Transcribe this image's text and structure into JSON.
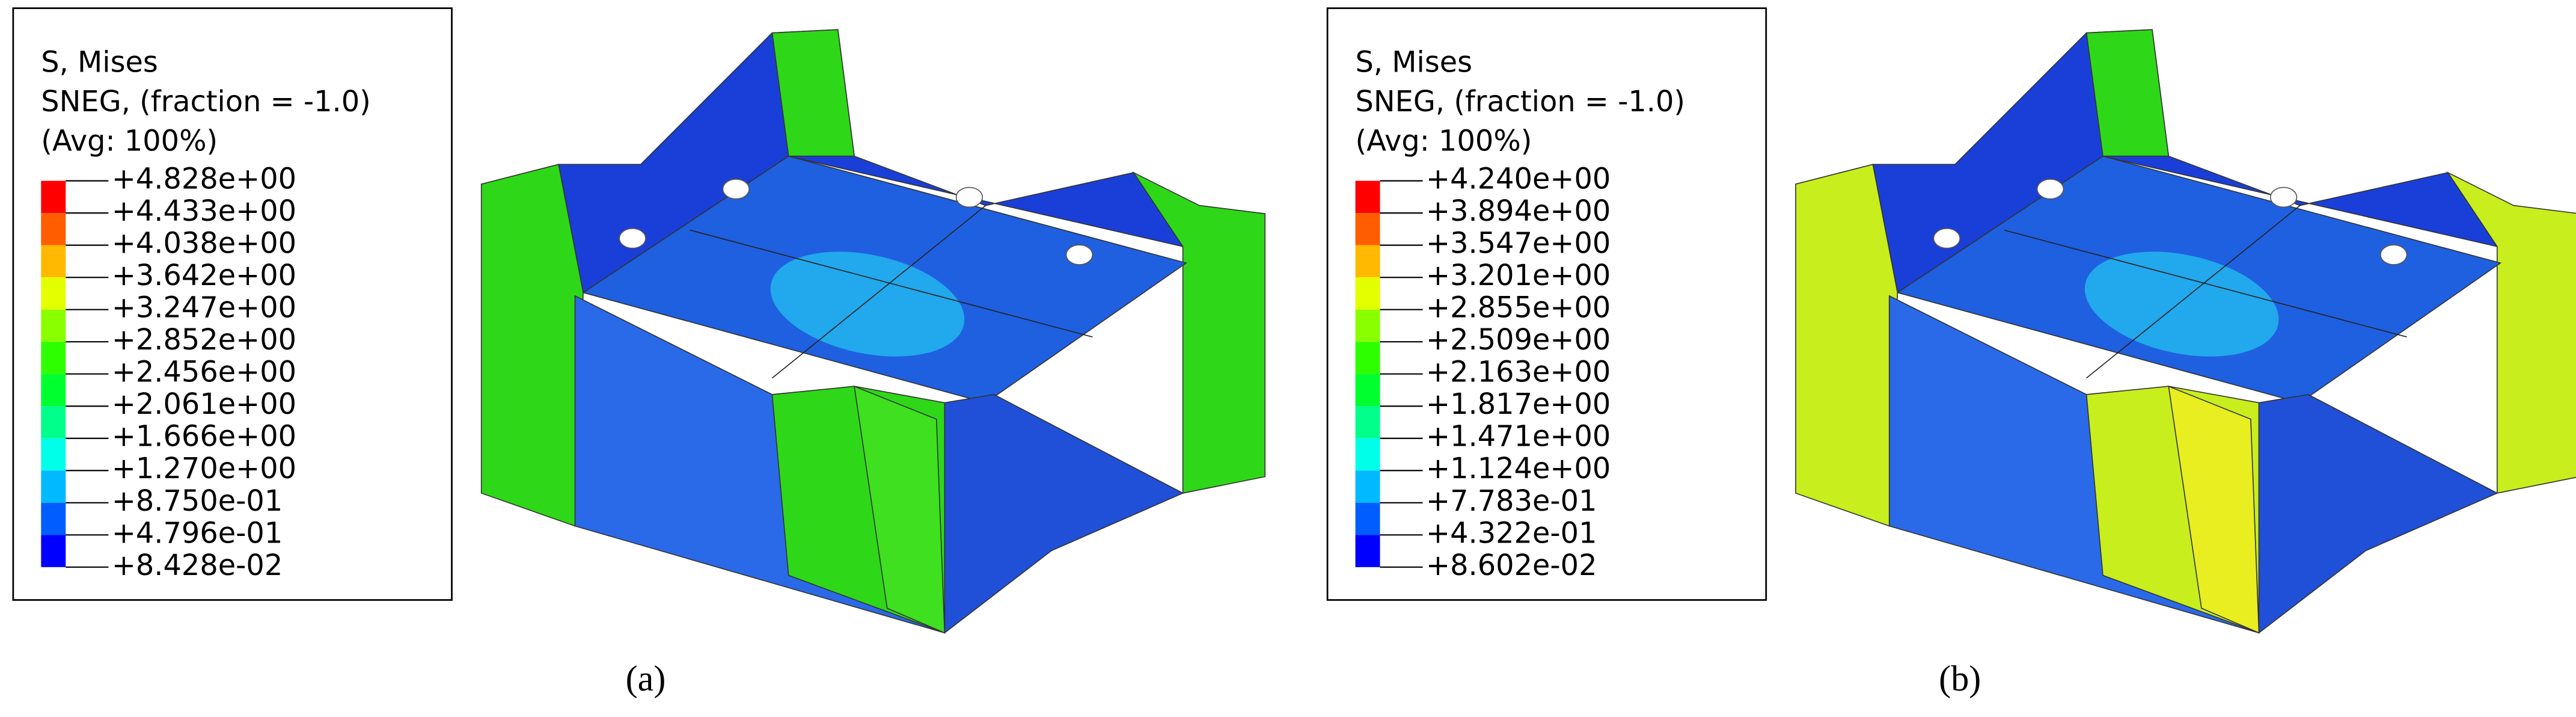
{
  "panels": [
    {
      "legend": {
        "lines": [
          "S, Mises",
          "SNEG, (fraction = -1.0)",
          "(Avg: 100%)"
        ],
        "levels": [
          "+4.828e+00",
          "+4.433e+00",
          "+4.038e+00",
          "+3.642e+00",
          "+3.247e+00",
          "+2.852e+00",
          "+2.456e+00",
          "+2.061e+00",
          "+1.666e+00",
          "+1.270e+00",
          "+8.750e-01",
          "+4.796e-01",
          "+8.428e-02"
        ]
      },
      "caption": "(a)"
    },
    {
      "legend": {
        "lines": [
          "S, Mises",
          "SNEG, (fraction = -1.0)",
          "(Avg: 100%)"
        ],
        "levels": [
          "+4.240e+00",
          "+3.894e+00",
          "+3.547e+00",
          "+3.201e+00",
          "+2.855e+00",
          "+2.509e+00",
          "+2.163e+00",
          "+1.817e+00",
          "+1.471e+00",
          "+1.124e+00",
          "+7.783e-01",
          "+4.322e-01",
          "+8.602e-02"
        ]
      },
      "caption": "(b)"
    }
  ]
}
